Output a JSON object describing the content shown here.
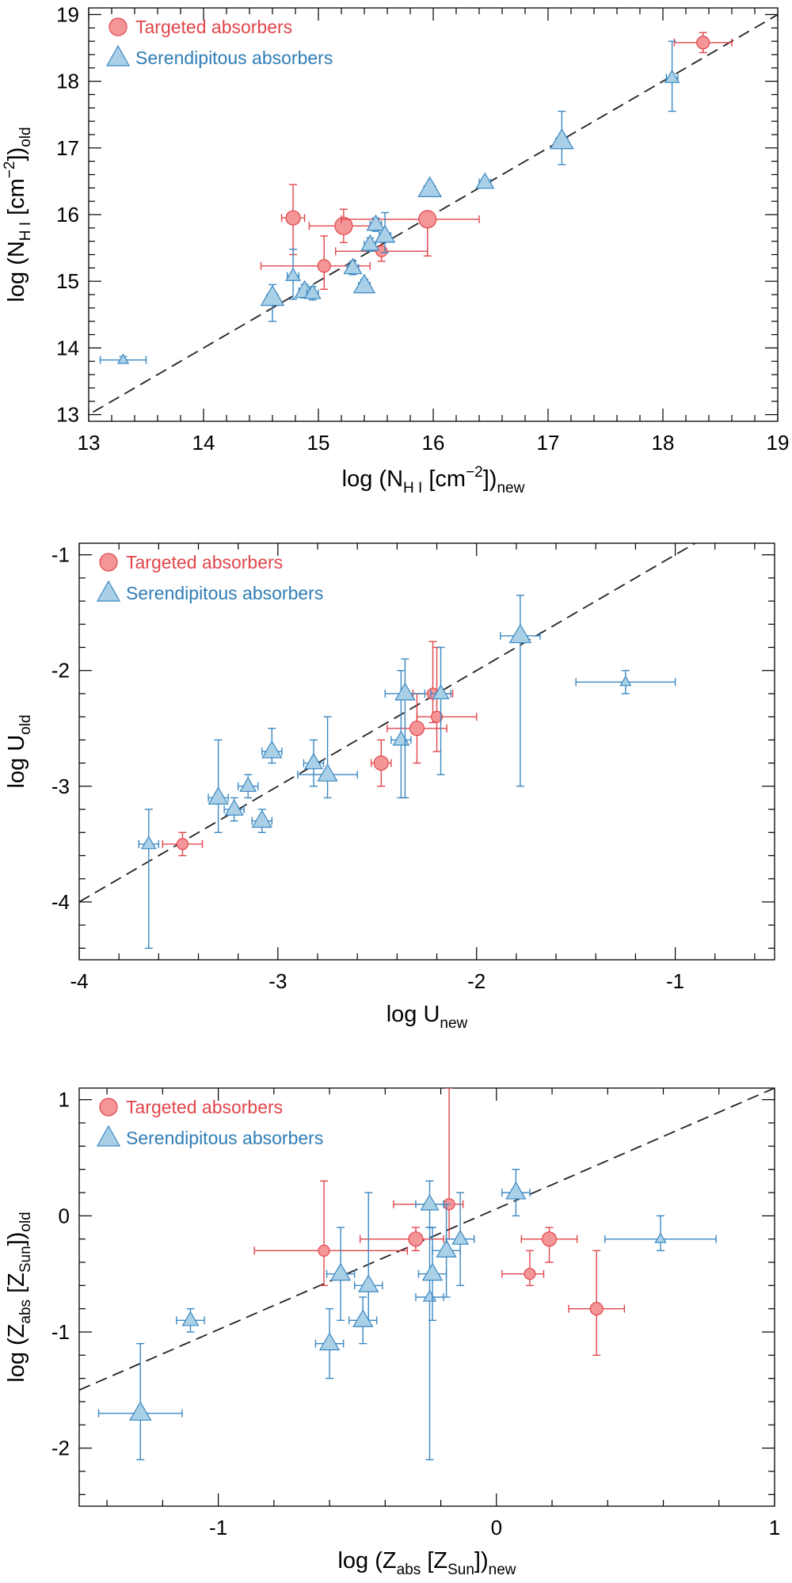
{
  "colors": {
    "targeted": "#e0454a",
    "serendipitous": "#3b88c2",
    "targeted_fill": "#f49597",
    "serendipitous_fill": "#a9d0e7"
  },
  "legend": {
    "targeted": "Targeted absorbers",
    "serendipitous": "Serendipitous absorbers"
  },
  "chart_data": [
    {
      "id": "nhi",
      "type": "scatter",
      "xlabel": {
        "main": "log (N",
        "sub1": "H I",
        "mid": " [cm",
        "sup": "−2",
        "end": "])",
        "sub2": "new"
      },
      "ylabel": {
        "main": "log (N",
        "sub1": "H I",
        "mid": " [cm",
        "sup": "−2",
        "end": "])",
        "sub2": "old"
      },
      "xlim": [
        13,
        19
      ],
      "ylim": [
        12.9,
        19.1
      ],
      "xticks": [
        13,
        14,
        15,
        16,
        17,
        18,
        19
      ],
      "yticks": [
        13,
        14,
        15,
        16,
        17,
        18,
        19
      ],
      "xtick_labels": [
        "13",
        "14",
        "15",
        "16",
        "17",
        "18",
        "19"
      ],
      "ytick_labels": [
        "13",
        "14",
        "15",
        "16",
        "17",
        "18",
        "19"
      ],
      "diagonal": [
        [
          12.9,
          12.9
        ],
        [
          19.1,
          19.1
        ]
      ],
      "series": [
        {
          "name": "Targeted absorbers",
          "marker": "circle",
          "points": [
            {
              "x": 14.78,
              "y": 15.95,
              "xerr": [
                0.1,
                0.1
              ],
              "yerr": [
                0.55,
                0.5
              ],
              "size": 9
            },
            {
              "x": 15.05,
              "y": 15.23,
              "xerr": [
                0.55,
                0.4
              ],
              "yerr": [
                0.35,
                0.45
              ],
              "size": 8
            },
            {
              "x": 15.22,
              "y": 15.83,
              "xerr": [
                0.3,
                0.3
              ],
              "yerr": [
                0.25,
                0.25
              ],
              "size": 11
            },
            {
              "x": 15.55,
              "y": 15.45,
              "xerr": [
                0.4,
                0.4
              ],
              "yerr": [
                0.15,
                0.15
              ],
              "size": 7
            },
            {
              "x": 15.95,
              "y": 15.93,
              "xerr": [
                0.75,
                0.45
              ],
              "yerr": [
                0.55,
                0.1
              ],
              "size": 11
            },
            {
              "x": 18.35,
              "y": 18.58,
              "xerr": [
                0.25,
                0.25
              ],
              "yerr": [
                0.15,
                0.15
              ],
              "size": 8
            }
          ]
        },
        {
          "name": "Serendipitous absorbers",
          "marker": "triangle",
          "points": [
            {
              "x": 13.3,
              "y": 13.82,
              "xerr": [
                0.2,
                0.2
              ],
              "yerr": [
                0.05,
                0.05
              ],
              "size": 6
            },
            {
              "x": 14.6,
              "y": 14.75,
              "xerr": [
                0.05,
                0.05
              ],
              "yerr": [
                0.35,
                0.2
              ],
              "size": 13
            },
            {
              "x": 14.78,
              "y": 15.08,
              "xerr": [
                0.05,
                0.05
              ],
              "yerr": [
                0.35,
                0.4
              ],
              "size": 8
            },
            {
              "x": 14.88,
              "y": 14.85,
              "xerr": [
                0.05,
                0.05
              ],
              "yerr": [
                0.1,
                0.1
              ],
              "size": 11
            },
            {
              "x": 14.95,
              "y": 14.82,
              "xerr": [
                0.05,
                0.05
              ],
              "yerr": [
                0.1,
                0.1
              ],
              "size": 9
            },
            {
              "x": 15.3,
              "y": 15.2,
              "xerr": [
                0.05,
                0.05
              ],
              "yerr": [
                0.1,
                0.1
              ],
              "size": 10
            },
            {
              "x": 15.4,
              "y": 14.93,
              "xerr": [
                0.05,
                0.05
              ],
              "yerr": [
                0.1,
                0.1
              ],
              "size": 12
            },
            {
              "x": 15.45,
              "y": 15.55,
              "xerr": [
                0.05,
                0.05
              ],
              "yerr": [
                0.1,
                0.1
              ],
              "size": 10
            },
            {
              "x": 15.5,
              "y": 15.85,
              "xerr": [
                0.05,
                0.05
              ],
              "yerr": [
                0.1,
                0.1
              ],
              "size": 10
            },
            {
              "x": 15.58,
              "y": 15.68,
              "xerr": [
                0.05,
                0.05
              ],
              "yerr": [
                0.25,
                0.35
              ],
              "size": 11
            },
            {
              "x": 15.97,
              "y": 16.38,
              "xerr": [
                0.05,
                0.05
              ],
              "yerr": [
                0.1,
                0.1
              ],
              "size": 13
            },
            {
              "x": 16.45,
              "y": 16.48,
              "xerr": [
                0.05,
                0.05
              ],
              "yerr": [
                0.05,
                0.05
              ],
              "size": 10
            },
            {
              "x": 17.12,
              "y": 17.1,
              "xerr": [
                0.05,
                0.05
              ],
              "yerr": [
                0.35,
                0.45
              ],
              "size": 13
            },
            {
              "x": 18.08,
              "y": 18.05,
              "xerr": [
                0.05,
                0.05
              ],
              "yerr": [
                0.5,
                0.55
              ],
              "size": 8
            }
          ]
        }
      ]
    },
    {
      "id": "u",
      "type": "scatter",
      "xlabel": {
        "main": "log U",
        "sub2": "new"
      },
      "ylabel": {
        "main": "log U",
        "sub2": "old"
      },
      "xlim": [
        -4,
        -0.5
      ],
      "ylim": [
        -4.5,
        -0.9
      ],
      "xticks": [
        -4,
        -3,
        -2,
        -1
      ],
      "yticks": [
        -4,
        -3,
        -2,
        -1
      ],
      "xtick_labels": [
        "-4",
        "-3",
        "-2",
        "-1"
      ],
      "ytick_labels": [
        "-4",
        "-3",
        "-2",
        "-1"
      ],
      "diagonal": [
        [
          -4,
          -4
        ],
        [
          -0.9,
          -0.9
        ]
      ],
      "series": [
        {
          "name": "Targeted absorbers",
          "marker": "circle",
          "points": [
            {
              "x": -3.48,
              "y": -3.5,
              "xerr": [
                0.1,
                0.1
              ],
              "yerr": [
                0.1,
                0.1
              ],
              "size": 7
            },
            {
              "x": -2.48,
              "y": -2.8,
              "xerr": [
                0.05,
                0.05
              ],
              "yerr": [
                0.2,
                0.2
              ],
              "size": 9
            },
            {
              "x": -2.3,
              "y": -2.5,
              "xerr": [
                0.15,
                0.15
              ],
              "yerr": [
                0.3,
                0.3
              ],
              "size": 9
            },
            {
              "x": -2.22,
              "y": -2.2,
              "xerr": [
                0.1,
                0.1
              ],
              "yerr": [
                0.25,
                0.45
              ],
              "size": 7
            },
            {
              "x": -2.2,
              "y": -2.4,
              "xerr": [
                0.1,
                0.2
              ],
              "yerr": [
                0.3,
                0.6
              ],
              "size": 7
            }
          ]
        },
        {
          "name": "Serendipitous absorbers",
          "marker": "triangle",
          "points": [
            {
              "x": -3.65,
              "y": -3.5,
              "xerr": [
                0.05,
                0.05
              ],
              "yerr": [
                0.9,
                0.3
              ],
              "size": 8
            },
            {
              "x": -3.3,
              "y": -3.1,
              "xerr": [
                0.05,
                0.05
              ],
              "yerr": [
                0.3,
                0.5
              ],
              "size": 11
            },
            {
              "x": -3.22,
              "y": -3.2,
              "xerr": [
                0.05,
                0.05
              ],
              "yerr": [
                0.1,
                0.1
              ],
              "size": 10
            },
            {
              "x": -3.15,
              "y": -3.0,
              "xerr": [
                0.05,
                0.05
              ],
              "yerr": [
                0.1,
                0.1
              ],
              "size": 9
            },
            {
              "x": -3.08,
              "y": -3.3,
              "xerr": [
                0.05,
                0.05
              ],
              "yerr": [
                0.1,
                0.1
              ],
              "size": 11
            },
            {
              "x": -3.03,
              "y": -2.7,
              "xerr": [
                0.05,
                0.05
              ],
              "yerr": [
                0.1,
                0.2
              ],
              "size": 11
            },
            {
              "x": -2.82,
              "y": -2.8,
              "xerr": [
                0.05,
                0.05
              ],
              "yerr": [
                0.2,
                0.2
              ],
              "size": 10
            },
            {
              "x": -2.75,
              "y": -2.9,
              "xerr": [
                0.15,
                0.15
              ],
              "yerr": [
                0.2,
                0.5
              ],
              "size": 11
            },
            {
              "x": -2.38,
              "y": -2.6,
              "xerr": [
                0.05,
                0.05
              ],
              "yerr": [
                0.5,
                0.6
              ],
              "size": 9
            },
            {
              "x": -2.36,
              "y": -2.2,
              "xerr": [
                0.1,
                0.1
              ],
              "yerr": [
                0.9,
                0.3
              ],
              "size": 11
            },
            {
              "x": -2.18,
              "y": -2.2,
              "xerr": [
                0.05,
                0.05
              ],
              "yerr": [
                0.7,
                0.4
              ],
              "size": 9
            },
            {
              "x": -1.78,
              "y": -1.7,
              "xerr": [
                0.1,
                0.1
              ],
              "yerr": [
                1.3,
                0.35
              ],
              "size": 12
            },
            {
              "x": -1.25,
              "y": -2.1,
              "xerr": [
                0.25,
                0.25
              ],
              "yerr": [
                0.1,
                0.1
              ],
              "size": 6
            }
          ]
        }
      ]
    },
    {
      "id": "z",
      "type": "scatter",
      "xlabel": {
        "main": "log (Z",
        "sub1": "abs",
        "mid": " [Z",
        "sub3": "Sun",
        "end": "])",
        "sub2": "new"
      },
      "ylabel": {
        "main": "log (Z",
        "sub1": "abs",
        "mid": " [Z",
        "sub3": "Sun",
        "end": "])",
        "sub2": "old"
      },
      "xlim": [
        -1.5,
        1
      ],
      "ylim": [
        -2.5,
        1.1
      ],
      "xticks": [
        -1,
        0,
        1
      ],
      "yticks": [
        -2,
        -1,
        0,
        1
      ],
      "xtick_labels": [
        "-1",
        "0",
        "1"
      ],
      "ytick_labels": [
        "-2",
        "-1",
        "0",
        "1"
      ],
      "diagonal": [
        [
          -1.5,
          -1.5
        ],
        [
          1,
          1.1
        ]
      ],
      "series": [
        {
          "name": "Targeted absorbers",
          "marker": "circle",
          "points": [
            {
              "x": -0.62,
              "y": -0.3,
              "xerr": [
                0.25,
                0.3
              ],
              "yerr": [
                0.3,
                0.6
              ],
              "size": 7
            },
            {
              "x": -0.29,
              "y": -0.2,
              "xerr": [
                0.2,
                0.1
              ],
              "yerr": [
                0.1,
                0.1
              ],
              "size": 9
            },
            {
              "x": -0.17,
              "y": 0.1,
              "xerr": [
                0.2,
                0.05
              ],
              "yerr": [
                0.3,
                1.0
              ],
              "size": 7
            },
            {
              "x": 0.12,
              "y": -0.5,
              "xerr": [
                0.1,
                0.05
              ],
              "yerr": [
                0.1,
                0.2
              ],
              "size": 7
            },
            {
              "x": 0.19,
              "y": -0.2,
              "xerr": [
                0.1,
                0.1
              ],
              "yerr": [
                0.2,
                0.1
              ],
              "size": 9
            },
            {
              "x": 0.36,
              "y": -0.8,
              "xerr": [
                0.1,
                0.1
              ],
              "yerr": [
                0.4,
                0.5
              ],
              "size": 8
            }
          ]
        },
        {
          "name": "Serendipitous absorbers",
          "marker": "triangle",
          "points": [
            {
              "x": -1.28,
              "y": -1.7,
              "xerr": [
                0.15,
                0.15
              ],
              "yerr": [
                0.4,
                0.6
              ],
              "size": 12
            },
            {
              "x": -1.1,
              "y": -0.9,
              "xerr": [
                0.05,
                0.05
              ],
              "yerr": [
                0.1,
                0.1
              ],
              "size": 9
            },
            {
              "x": -0.6,
              "y": -1.1,
              "xerr": [
                0.05,
                0.05
              ],
              "yerr": [
                0.3,
                0.3
              ],
              "size": 11
            },
            {
              "x": -0.56,
              "y": -0.5,
              "xerr": [
                0.05,
                0.05
              ],
              "yerr": [
                0.4,
                0.4
              ],
              "size": 11
            },
            {
              "x": -0.46,
              "y": -0.6,
              "xerr": [
                0.05,
                0.05
              ],
              "yerr": [
                0.3,
                0.8
              ],
              "size": 11
            },
            {
              "x": -0.48,
              "y": -0.9,
              "xerr": [
                0.05,
                0.05
              ],
              "yerr": [
                0.2,
                0.2
              ],
              "size": 11
            },
            {
              "x": -0.24,
              "y": -0.7,
              "xerr": [
                0.05,
                0.05
              ],
              "yerr": [
                1.4,
                0.6
              ],
              "size": 7
            },
            {
              "x": -0.23,
              "y": -0.5,
              "xerr": [
                0.05,
                0.05
              ],
              "yerr": [
                0.4,
                0.4
              ],
              "size": 11
            },
            {
              "x": -0.24,
              "y": 0.1,
              "xerr": [
                0.05,
                0.05
              ],
              "yerr": [
                0.2,
                0.2
              ],
              "size": 10
            },
            {
              "x": -0.18,
              "y": -0.3,
              "xerr": [
                0.05,
                0.05
              ],
              "yerr": [
                0.4,
                0.4
              ],
              "size": 11
            },
            {
              "x": -0.13,
              "y": -0.2,
              "xerr": [
                0.05,
                0.05
              ],
              "yerr": [
                0.4,
                0.4
              ],
              "size": 9
            },
            {
              "x": 0.07,
              "y": 0.2,
              "xerr": [
                0.05,
                0.05
              ],
              "yerr": [
                0.2,
                0.2
              ],
              "size": 11
            },
            {
              "x": 0.59,
              "y": -0.2,
              "xerr": [
                0.2,
                0.2
              ],
              "yerr": [
                0.1,
                0.2
              ],
              "size": 6
            }
          ]
        }
      ]
    }
  ]
}
